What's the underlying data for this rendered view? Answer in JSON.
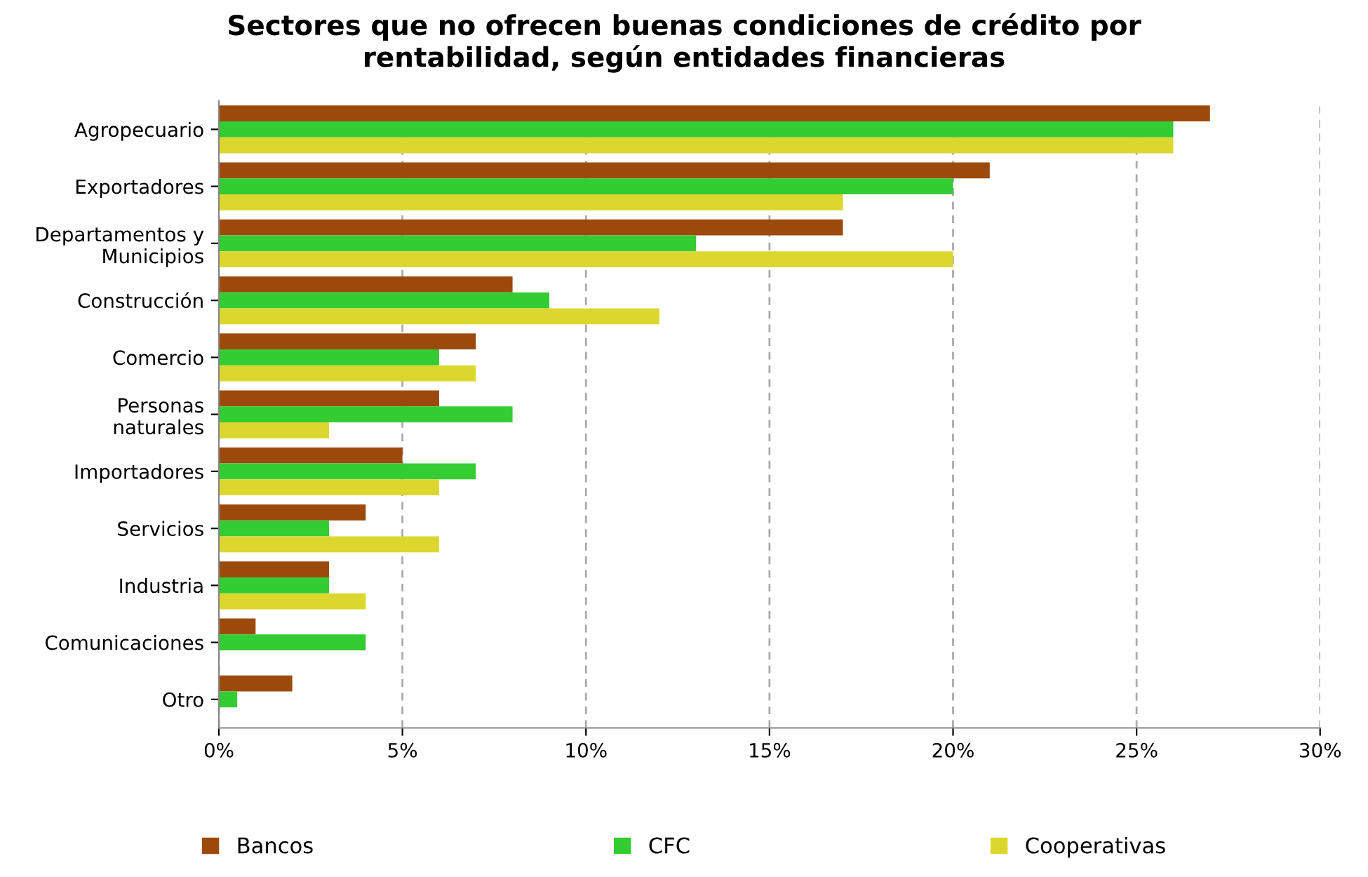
{
  "chart_data": {
    "type": "bar",
    "orientation": "horizontal",
    "title": "Sectores que no ofrecen buenas condiciones de crédito por\nrentabilidad, según entidades financieras",
    "categories": [
      "Agropecuario",
      "Exportadores",
      "Departamentos y\nMunicipios",
      "Construcción",
      "Comercio",
      "Personas\nnaturales",
      "Importadores",
      "Servicios",
      "Industria",
      "Comunicaciones",
      "Otro"
    ],
    "series": [
      {
        "name": "Bancos",
        "color": "#9c4a0c",
        "values": [
          27,
          21,
          17,
          8,
          7,
          6,
          5,
          4,
          3,
          1,
          2
        ]
      },
      {
        "name": "CFC",
        "color": "#33cc33",
        "values": [
          26,
          20,
          13,
          9,
          6,
          8,
          7,
          3,
          3,
          4,
          0.5
        ]
      },
      {
        "name": "Cooperativas",
        "color": "#dcd72e",
        "values": [
          26,
          17,
          20,
          12,
          7,
          3,
          6,
          6,
          4,
          null,
          null
        ]
      }
    ],
    "xlim": [
      0,
      30
    ],
    "xticks": [
      {
        "value": 0,
        "label": "0%"
      },
      {
        "value": 5,
        "label": "5%"
      },
      {
        "value": 10,
        "label": "10%"
      },
      {
        "value": 15,
        "label": "15%"
      },
      {
        "value": 20,
        "label": "20%"
      },
      {
        "value": 25,
        "label": "25%"
      },
      {
        "value": 30,
        "label": "30%"
      }
    ],
    "grid": "x",
    "legend": "bottom"
  }
}
